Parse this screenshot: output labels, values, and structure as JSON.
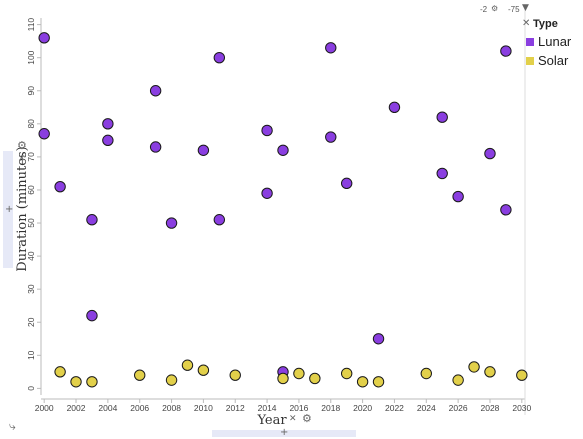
{
  "chart_data": {
    "type": "scatter",
    "xlabel": "Year",
    "ylabel": "Duration (minutes)",
    "xlim": [
      1999.8,
      2030.2
    ],
    "ylim": [
      -2,
      112
    ],
    "xticks": [
      2000,
      2002,
      2004,
      2006,
      2008,
      2010,
      2012,
      2014,
      2016,
      2018,
      2020,
      2022,
      2024,
      2026,
      2028,
      2030
    ],
    "yticks": [
      0,
      10,
      20,
      30,
      40,
      50,
      60,
      70,
      80,
      90,
      100,
      110
    ],
    "grid": false,
    "legend_title": "Type",
    "legend_position": "right",
    "series": [
      {
        "name": "Lunar",
        "color": "#8a3ee0",
        "points": [
          [
            2000,
            106
          ],
          [
            2000,
            77
          ],
          [
            2001,
            61
          ],
          [
            2003,
            51
          ],
          [
            2003,
            22
          ],
          [
            2004,
            80
          ],
          [
            2004,
            75
          ],
          [
            2007,
            90
          ],
          [
            2007,
            73
          ],
          [
            2008,
            50
          ],
          [
            2010,
            72
          ],
          [
            2011,
            100
          ],
          [
            2011,
            51
          ],
          [
            2014,
            78
          ],
          [
            2014,
            59
          ],
          [
            2015,
            72
          ],
          [
            2015,
            5
          ],
          [
            2018,
            103
          ],
          [
            2018,
            76
          ],
          [
            2019,
            62
          ],
          [
            2021,
            15
          ],
          [
            2022,
            85
          ],
          [
            2025,
            82
          ],
          [
            2025,
            65
          ],
          [
            2026,
            58
          ],
          [
            2028,
            71
          ],
          [
            2029,
            102
          ],
          [
            2029,
            54
          ]
        ]
      },
      {
        "name": "Solar",
        "color": "#e2d04a",
        "points": [
          [
            2001,
            5
          ],
          [
            2002,
            2
          ],
          [
            2003,
            2
          ],
          [
            2006,
            4
          ],
          [
            2008,
            2.5
          ],
          [
            2009,
            7
          ],
          [
            2010,
            5.5
          ],
          [
            2012,
            4
          ],
          [
            2015,
            3
          ],
          [
            2016,
            4.5
          ],
          [
            2017,
            3
          ],
          [
            2019,
            4.5
          ],
          [
            2020,
            2
          ],
          [
            2021,
            2
          ],
          [
            2024,
            4.5
          ],
          [
            2026,
            2.5
          ],
          [
            2027,
            6.5
          ],
          [
            2028,
            5
          ],
          [
            2030,
            4
          ]
        ]
      }
    ]
  },
  "controls": {
    "top_left_value": "-2",
    "top_right_value": "-75",
    "close_icon": "close-icon",
    "gear_icon": "gear-icon",
    "filter_icon": "filter-icon",
    "plus_icon": "plus-icon",
    "corner_icon": "axis-swap-icon"
  }
}
